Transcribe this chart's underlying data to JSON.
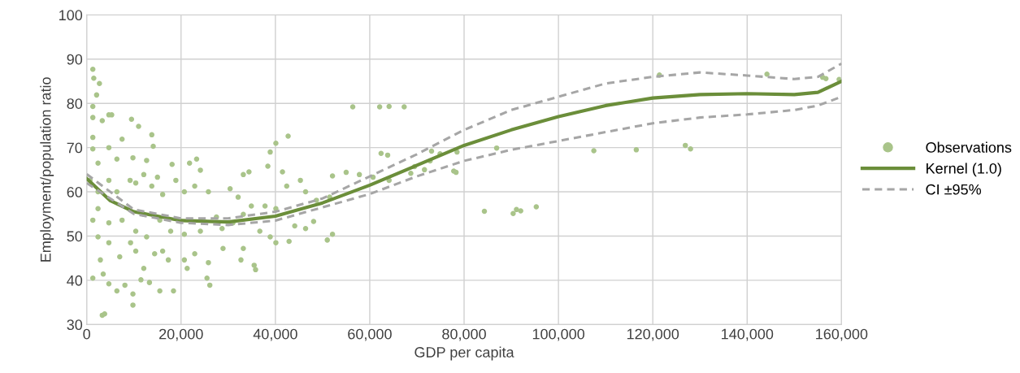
{
  "chart_data": {
    "type": "scatter",
    "xlabel": "GDP per capita",
    "ylabel": "Employment/population ratio",
    "xlim": [
      0,
      160000
    ],
    "ylim": [
      30,
      100
    ],
    "xticks": [
      0,
      {
        "value": 20000,
        "label": "20,000"
      },
      {
        "value": 40000,
        "label": "40,000"
      },
      {
        "value": 60000,
        "label": "60,000"
      },
      {
        "value": 80000,
        "label": "80,000"
      },
      {
        "value": 100000,
        "label": "100,000"
      },
      {
        "value": 120000,
        "label": "120,000"
      },
      {
        "value": 140000,
        "label": "140,000"
      },
      {
        "value": 160000,
        "label": "160,000"
      }
    ],
    "yticks": [
      30,
      40,
      50,
      60,
      70,
      80,
      90,
      100
    ],
    "grid": true,
    "legend": "right",
    "series": [
      {
        "name": "Observations",
        "marker": "circle",
        "color": "#a9c48a",
        "x": [
          1300,
          1500,
          2700,
          2100,
          1300,
          1300,
          4700,
          5300,
          3300,
          9500,
          11000,
          13800,
          14100,
          7500,
          1300,
          1300,
          4700,
          6400,
          9800,
          12700,
          2400,
          18100,
          21800,
          23300,
          24100,
          15000,
          12100,
          9200,
          4700,
          700,
          2400,
          6400,
          10400,
          13800,
          16100,
          18900,
          20700,
          22900,
          25800,
          30400,
          33200,
          34400,
          32100,
          34900,
          37800,
          38400,
          38900,
          40100,
          42700,
          41500,
          42400,
          45300,
          46400,
          48700,
          51500,
          52100,
          55000,
          56400,
          62100,
          64100,
          67300,
          62400,
          63800,
          57800,
          60700,
          64100,
          2400,
          1300,
          2400,
          4700,
          7500,
          10400,
          12100,
          15500,
          17800,
          20700,
          24100,
          27500,
          28700,
          31000,
          33200,
          36700,
          38900,
          40100,
          42900,
          44100,
          46400,
          48100,
          51000,
          52100,
          40100,
          4700,
          7000,
          9300,
          10400,
          12700,
          14400,
          16100,
          17300,
          20700,
          22900,
          25800,
          28900,
          33200,
          32700,
          35500,
          35800,
          21300,
          2900,
          1300,
          3500,
          4700,
          6400,
          8100,
          9800,
          9800,
          11500,
          13300,
          15500,
          18400,
          25500,
          26100,
          12100,
          3300,
          3800,
          68700,
          69500,
          71600,
          72800,
          73100,
          74900,
          78500,
          77800,
          78300,
          84300,
          86900,
          90400,
          91100,
          92000,
          95300,
          107500,
          116500,
          121400,
          126900,
          128000,
          144200,
          156000,
          156700,
          159500
        ],
        "values": [
          87.7,
          85.7,
          84.5,
          81.9,
          79.3,
          76.8,
          77.4,
          77.4,
          76.1,
          76.4,
          74.8,
          72.9,
          70.3,
          71.9,
          72.3,
          69.7,
          70,
          67.4,
          67.7,
          67.1,
          66.5,
          66.2,
          66.5,
          67.4,
          64.9,
          63.3,
          63.9,
          62.6,
          62.6,
          62.6,
          60,
          60,
          62,
          61.3,
          59.4,
          62.6,
          60,
          61.3,
          60,
          60.7,
          63.9,
          64.5,
          58.8,
          56.8,
          56.8,
          65.8,
          69,
          71,
          72.6,
          64.5,
          61.3,
          62.6,
          60,
          58.1,
          58.8,
          63.6,
          64.4,
          79.2,
          79.2,
          79.3,
          79.2,
          68.7,
          68.3,
          63.9,
          63.3,
          62.6,
          56.2,
          53.6,
          49.8,
          53,
          53.6,
          51.1,
          54.9,
          53.6,
          51.1,
          50.4,
          51.1,
          54.3,
          51.7,
          53,
          54.9,
          51.1,
          49.8,
          48.5,
          48.8,
          52.3,
          51.7,
          53.3,
          49.1,
          50.4,
          56.2,
          48.5,
          45.3,
          48.5,
          46.6,
          49.8,
          46,
          46.6,
          44.6,
          44.6,
          46,
          44,
          47.2,
          47.2,
          44.6,
          43.4,
          42.4,
          42.7,
          44.6,
          40.5,
          41.4,
          39.2,
          37.6,
          38.9,
          36.9,
          34.4,
          40.1,
          39.5,
          37.6,
          37.6,
          40.5,
          38.9,
          42.7,
          32.1,
          32.4,
          64.2,
          65.7,
          65,
          67,
          69.2,
          68.6,
          69,
          64.7,
          64.4,
          55.6,
          69.9,
          55.1,
          56,
          55.7,
          56.6,
          69.3,
          69.5,
          86.4,
          70.5,
          69.7,
          86.6,
          85.9,
          85.6,
          85.4
        ]
      },
      {
        "name": "Kernel (1.0)",
        "type": "line",
        "marker": "none",
        "line_style": "solid",
        "color": "#6b8e3a",
        "x": [
          0,
          5000,
          10000,
          20000,
          30000,
          40000,
          50000,
          60000,
          70000,
          80000,
          90000,
          100000,
          110000,
          120000,
          130000,
          140000,
          150000,
          155000,
          160000
        ],
        "values": [
          63,
          58,
          55.5,
          53.5,
          53.2,
          54.5,
          57.5,
          61.5,
          66,
          70.5,
          74,
          77,
          79.5,
          81.2,
          82,
          82.2,
          82,
          82.5,
          85
        ]
      },
      {
        "name": "CI ±95%",
        "type": "line",
        "marker": "none",
        "line_style": "dashed",
        "color": "#a6a6a6",
        "x": [
          0,
          10000,
          20000,
          30000,
          40000,
          50000,
          60000,
          70000,
          80000,
          90000,
          100000,
          110000,
          120000,
          130000,
          140000,
          150000,
          155000,
          160000
        ],
        "values": [
          64,
          56,
          54,
          54,
          55.5,
          58.5,
          63.5,
          68.5,
          74,
          78.5,
          81.5,
          84.5,
          86,
          87,
          86.3,
          85.5,
          86,
          89
        ]
      },
      {
        "type": "line",
        "marker": "none",
        "line_style": "dashed",
        "color": "#a6a6a6",
        "x": [
          0,
          10000,
          20000,
          30000,
          40000,
          50000,
          60000,
          70000,
          80000,
          90000,
          100000,
          110000,
          120000,
          130000,
          140000,
          150000,
          155000,
          160000
        ],
        "values": [
          62,
          55,
          53,
          52.5,
          53.5,
          56.5,
          59.5,
          63.5,
          67,
          69.5,
          71.5,
          73.5,
          75.5,
          76.8,
          77.5,
          78.5,
          79.5,
          81.5
        ]
      }
    ]
  }
}
